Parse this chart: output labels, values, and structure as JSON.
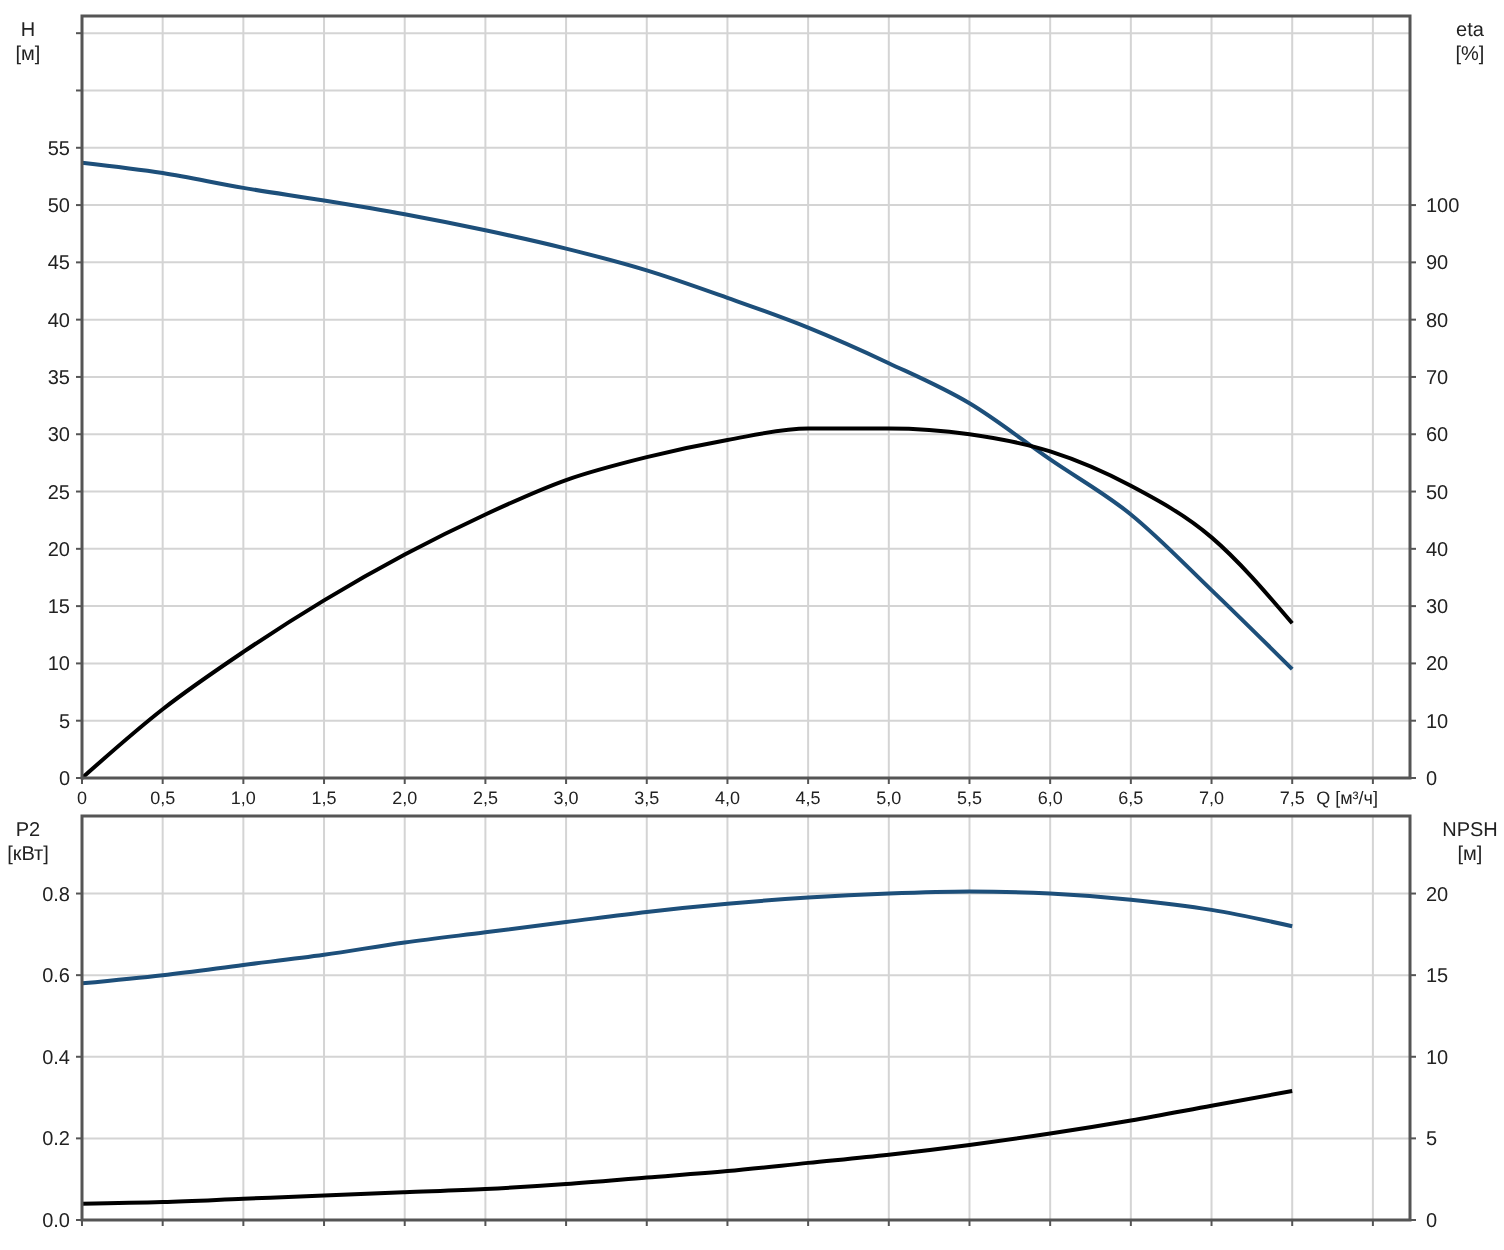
{
  "chart_data": [
    {
      "type": "line",
      "xlabel": "Q [м³/ч]",
      "ylabel": "H [м]",
      "y2label": "eta [%]",
      "grid": true,
      "x": [
        0,
        0.5,
        1,
        1.5,
        2,
        2.5,
        3,
        3.5,
        4,
        4.5,
        5,
        5.5,
        6,
        6.5,
        7,
        7.5
      ],
      "series": [
        {
          "color": "#1d4f7a",
          "values": [
            53.7,
            52.8,
            51.5,
            50.4,
            49.2,
            47.8,
            46.2,
            44.3,
            41.9,
            39.3,
            36.2,
            32.7,
            27.8,
            23,
            16.4,
            9.5
          ]
        },
        {
          "color": "#000000",
          "axis": "y2",
          "values": [
            0,
            12,
            22,
            31,
            39,
            46,
            52,
            56,
            59,
            61,
            61,
            60,
            57,
            51,
            42,
            27
          ]
        }
      ],
      "xlim": [
        0,
        8.23
      ],
      "xticks": [
        0,
        {
          "value": 0.5,
          "label": "0,5"
        },
        {
          "value": 1,
          "label": "1,0"
        },
        {
          "value": 1.5,
          "label": "1,5"
        },
        {
          "value": 2,
          "label": "2,0"
        },
        {
          "value": 2.5,
          "label": "2,5"
        },
        {
          "value": 3,
          "label": "3,0"
        },
        {
          "value": 3.5,
          "label": "3,5"
        },
        {
          "value": 4,
          "label": "4,0"
        },
        {
          "value": 4.5,
          "label": "4,5"
        },
        {
          "value": 5,
          "label": "5,0"
        },
        {
          "value": 5.5,
          "label": "5,5"
        },
        {
          "value": 6,
          "label": "6,0"
        },
        {
          "value": 6.5,
          "label": "6,5"
        },
        {
          "value": 7,
          "label": "7,0"
        },
        {
          "value": 7.5,
          "label": "7,5"
        },
        {
          "value": 8,
          "label": null
        }
      ],
      "ylim": [
        0,
        66.5
      ],
      "yticks": [
        0,
        5,
        10,
        15,
        20,
        25,
        30,
        35,
        40,
        45,
        50,
        55,
        {
          "value": 60,
          "label": null
        },
        {
          "value": 65,
          "label": null
        }
      ],
      "y2lim": [
        0,
        133
      ],
      "y2ticks": [
        0,
        10,
        20,
        30,
        40,
        50,
        60,
        70,
        80,
        90,
        100
      ]
    },
    {
      "type": "line",
      "ylabel": "P2 [кВт]",
      "y2label": "NPSH [м]",
      "grid": true,
      "tick_labels": "y",
      "x": [
        0,
        0.5,
        1,
        1.5,
        2,
        2.5,
        3,
        3.5,
        4,
        4.5,
        5,
        5.5,
        6,
        6.5,
        7,
        7.5
      ],
      "series": [
        {
          "color": "#1d4f7a",
          "values": [
            0.58,
            0.6,
            0.625,
            0.65,
            0.68,
            0.705,
            0.73,
            0.755,
            0.775,
            0.79,
            0.8,
            0.805,
            0.8,
            0.785,
            0.76,
            0.72
          ]
        },
        {
          "color": "#000000",
          "axis": "y2",
          "values": [
            1,
            1.1,
            1.3,
            1.5,
            1.7,
            1.9,
            2.2,
            2.6,
            3,
            3.5,
            4,
            4.6,
            5.3,
            6.1,
            7,
            7.9
          ]
        }
      ],
      "xlim": [
        0,
        8.23
      ],
      "xticks": [
        0,
        0.5,
        1,
        1.5,
        2,
        2.5,
        3,
        3.5,
        4,
        4.5,
        5,
        5.5,
        6,
        6.5,
        7,
        7.5,
        8
      ],
      "ylim": [
        0,
        0.99
      ],
      "yticks": [
        {
          "value": 0,
          "label": "0.0"
        },
        0.2,
        0.4,
        0.6,
        0.8
      ],
      "y2lim": [
        0,
        24.75
      ],
      "y2ticks": [
        0,
        5,
        10,
        15,
        20
      ]
    }
  ]
}
